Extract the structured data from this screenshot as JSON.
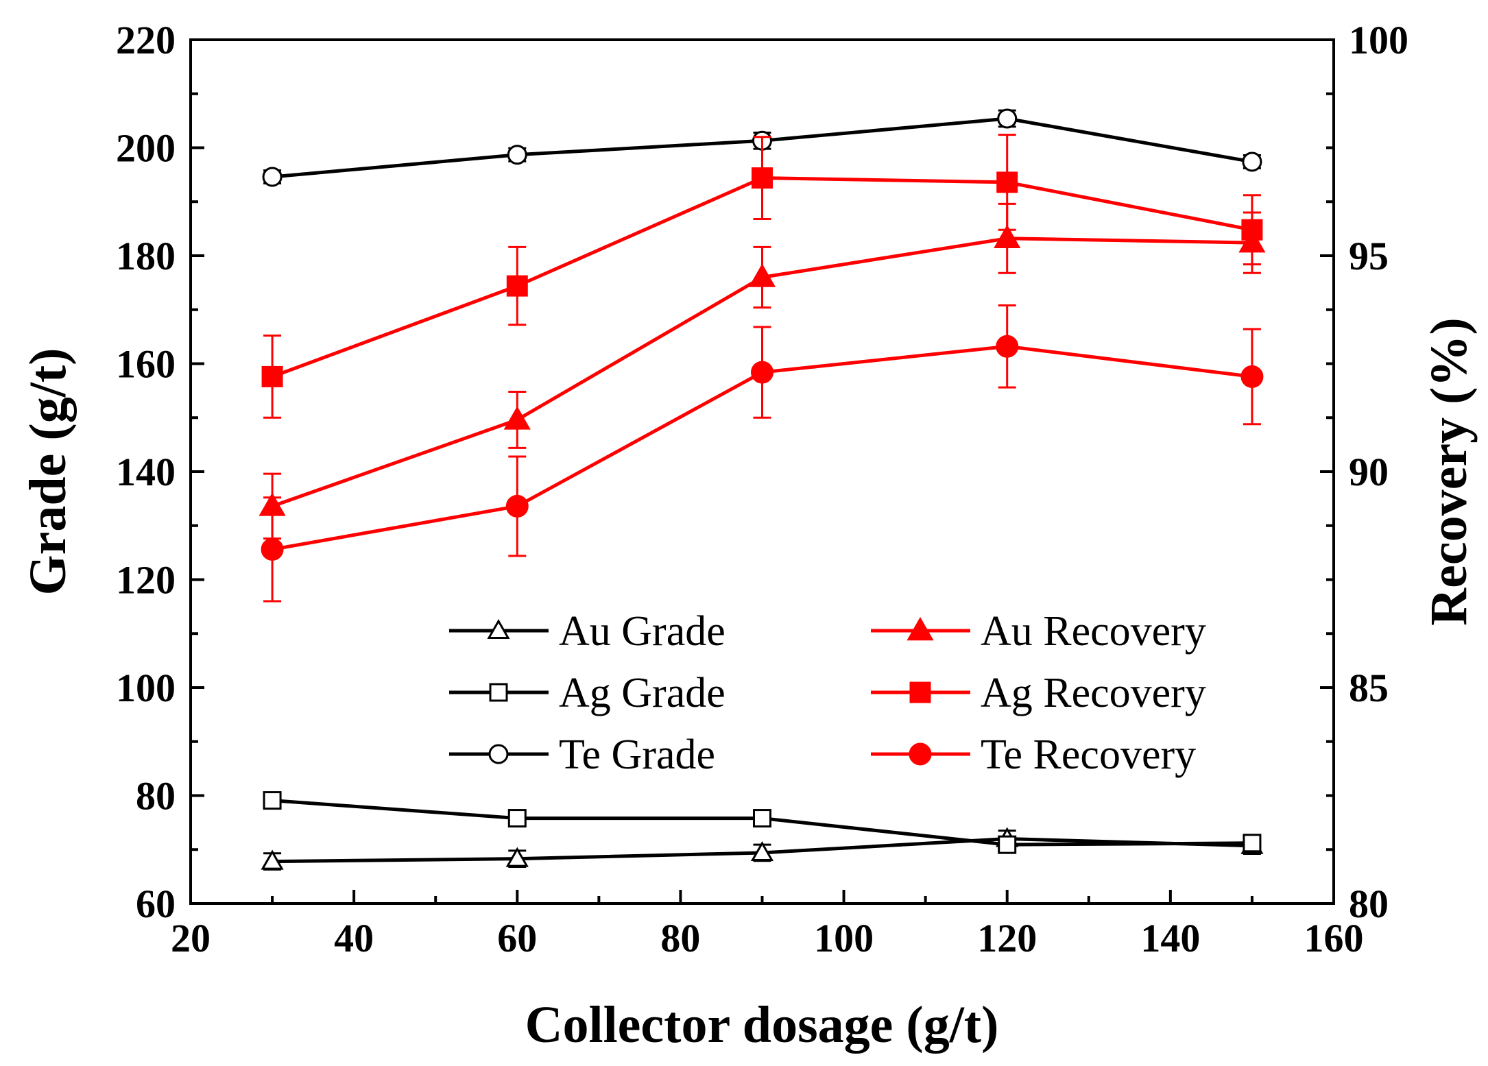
{
  "chart_data": {
    "type": "line",
    "xlabel": "Collector dosage (g/t)",
    "ylabel": "Grade (g/t)",
    "y2label": "Recovery (%)",
    "xlim": [
      20,
      160
    ],
    "ylim": [
      60,
      220
    ],
    "y2lim": [
      80,
      100
    ],
    "x_ticks": [
      20,
      40,
      60,
      80,
      100,
      120,
      140,
      160
    ],
    "y_ticks": [
      60,
      80,
      100,
      120,
      140,
      160,
      180,
      200,
      220
    ],
    "y2_ticks": [
      80,
      85,
      90,
      95,
      100
    ],
    "x": [
      30,
      60,
      90,
      120,
      150
    ],
    "legend_position": "center-bottom",
    "series": [
      {
        "name": "Au Grade",
        "axis": "left",
        "marker": "triangle-open",
        "color": "#000000",
        "values": [
          67.8,
          68.3,
          69.4,
          72.0,
          70.7
        ],
        "errors": [
          1.5,
          1.5,
          1.5,
          1.5,
          1.5
        ]
      },
      {
        "name": "Ag Grade",
        "axis": "left",
        "marker": "square-open",
        "color": "#000000",
        "values": [
          79.1,
          75.8,
          75.8,
          70.9,
          71.2
        ],
        "errors": [
          1.2,
          1.0,
          1.0,
          1.0,
          1.0
        ]
      },
      {
        "name": "Te Grade",
        "axis": "left",
        "marker": "circle-open",
        "color": "#000000",
        "values": [
          194.6,
          198.7,
          201.3,
          205.4,
          197.4
        ],
        "errors": [
          1.2,
          1.2,
          1.5,
          1.5,
          1.2
        ]
      },
      {
        "name": "Au Recovery",
        "axis": "right",
        "marker": "triangle-filled",
        "color": "#ff0000",
        "values": [
          89.2,
          91.2,
          94.5,
          95.4,
          95.3
        ],
        "errors": [
          0.75,
          0.65,
          0.7,
          0.8,
          0.7
        ]
      },
      {
        "name": "Ag Recovery",
        "axis": "right",
        "marker": "square-filled",
        "color": "#ff0000",
        "values": [
          92.2,
          94.3,
          96.8,
          96.7,
          95.6
        ],
        "errors": [
          0.95,
          0.9,
          0.95,
          1.1,
          0.8
        ]
      },
      {
        "name": "Te Recovery",
        "axis": "right",
        "marker": "circle-filled",
        "color": "#ff0000",
        "values": [
          88.2,
          89.2,
          92.3,
          92.9,
          92.2
        ],
        "errors": [
          1.2,
          1.15,
          1.05,
          0.95,
          1.1
        ]
      }
    ]
  }
}
